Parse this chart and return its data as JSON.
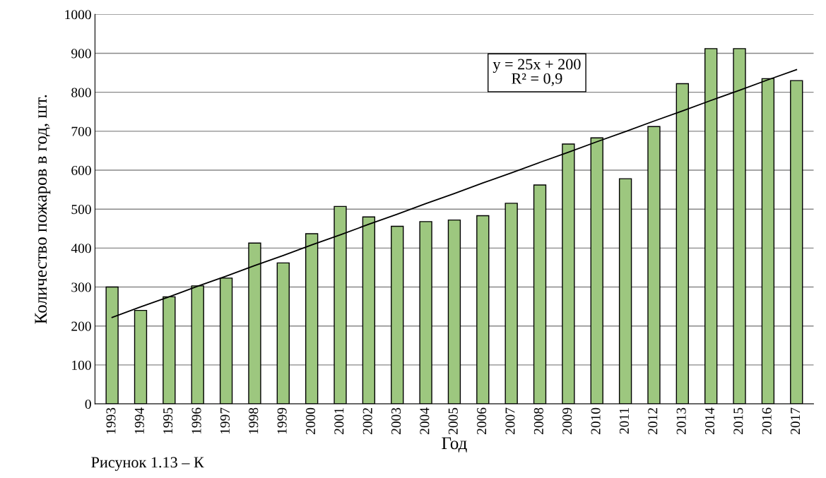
{
  "chart_data": {
    "type": "bar",
    "categories": [
      "1993",
      "1994",
      "1995",
      "1996",
      "1997",
      "1998",
      "1999",
      "2000",
      "2001",
      "2002",
      "2003",
      "2004",
      "2005",
      "2006",
      "2007",
      "2008",
      "2009",
      "2010",
      "2011",
      "2012",
      "2013",
      "2014",
      "2015",
      "2016",
      "2017"
    ],
    "series": [
      {
        "color": "#9dc77f",
        "values": [
          300,
          240,
          275,
          303,
          323,
          413,
          362,
          437,
          507,
          480,
          456,
          468,
          472,
          483,
          515,
          562,
          667,
          683,
          578,
          712,
          822,
          912,
          912,
          835,
          830
        ]
      },
      {
        "type": "line",
        "color": "#000000",
        "values": [
          222,
          249,
          275,
          302,
          328,
          355,
          381,
          408,
          434,
          461,
          487,
          514,
          540,
          567,
          593,
          620,
          646,
          673,
          699,
          726,
          752,
          779,
          805,
          832,
          858
        ]
      }
    ],
    "xlabel": "Год",
    "ylabel": "Количество пожаров в год, шт.",
    "ylim": [
      0,
      1000
    ],
    "yticks": [
      0,
      100,
      200,
      300,
      400,
      500,
      600,
      700,
      800,
      900,
      1000
    ],
    "grid": "y",
    "legend": false,
    "marker": "none",
    "line_style": "solid",
    "annotations": [
      "y = 25x + 200",
      "R² = 0,9",
      "Рисунок 1.13 – К"
    ]
  }
}
